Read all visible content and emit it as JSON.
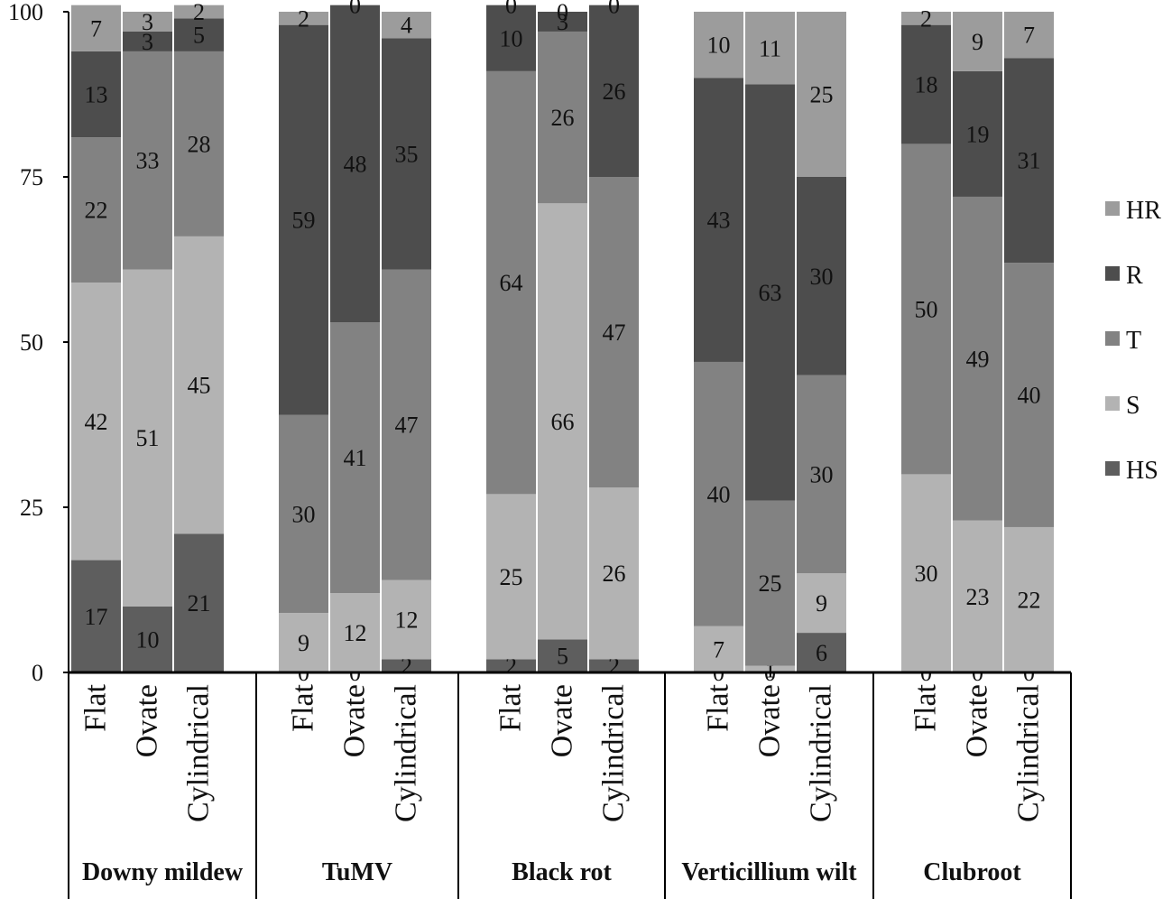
{
  "chart_data": {
    "type": "bar",
    "stacked": true,
    "title": "",
    "xlabel": "",
    "ylabel": "",
    "ylim": [
      0,
      100
    ],
    "yticks": [
      0,
      25,
      50,
      75,
      100
    ],
    "grid": false,
    "legend_position": "right",
    "segment_order": [
      "HS",
      "S",
      "T",
      "R",
      "HR"
    ],
    "legend_order": [
      "HR",
      "R",
      "T",
      "S",
      "HS"
    ],
    "colors": {
      "HS": "#5e5e5e",
      "S": "#b3b3b3",
      "T": "#828282",
      "R": "#4d4d4d",
      "HR": "#9c9c9c"
    },
    "groups": [
      {
        "name": "Downy mildew",
        "bars": [
          {
            "category": "Flat",
            "values": {
              "HS": 17,
              "S": 42,
              "T": 22,
              "R": 13,
              "HR": 7
            }
          },
          {
            "category": "Ovate",
            "values": {
              "HS": 10,
              "S": 51,
              "T": 33,
              "R": 3,
              "HR": 3
            }
          },
          {
            "category": "Cylindrical",
            "values": {
              "HS": 21,
              "S": 45,
              "T": 28,
              "R": 5,
              "HR": 2
            }
          }
        ]
      },
      {
        "name": "TuMV",
        "bars": [
          {
            "category": "Flat",
            "values": {
              "HS": 0,
              "S": 9,
              "T": 30,
              "R": 59,
              "HR": 2
            }
          },
          {
            "category": "Ovate",
            "values": {
              "HS": 0,
              "S": 12,
              "T": 41,
              "R": 48,
              "HR": 0
            }
          },
          {
            "category": "Cylindrical",
            "values": {
              "HS": 2,
              "S": 12,
              "T": 47,
              "R": 35,
              "HR": 4
            }
          }
        ]
      },
      {
        "name": "Black rot",
        "bars": [
          {
            "category": "Flat",
            "values": {
              "HS": 2,
              "S": 25,
              "T": 64,
              "R": 10,
              "HR": 0
            }
          },
          {
            "category": "Ovate",
            "values": {
              "HS": 5,
              "S": 66,
              "T": 26,
              "R": 3,
              "HR": 0
            }
          },
          {
            "category": "Cylindrical",
            "values": {
              "HS": 2,
              "S": 26,
              "T": 47,
              "R": 26,
              "HR": 0
            }
          }
        ]
      },
      {
        "name": "Verticillium wilt",
        "bars": [
          {
            "category": "Flat",
            "values": {
              "HS": 0,
              "S": 7,
              "T": 40,
              "R": 43,
              "HR": 10
            }
          },
          {
            "category": "Ovate",
            "values": {
              "HS": 0,
              "S": 1,
              "T": 25,
              "R": 63,
              "HR": 11
            }
          },
          {
            "category": "Cylindrical",
            "values": {
              "HS": 6,
              "S": 9,
              "T": 30,
              "R": 30,
              "HR": 25
            }
          }
        ]
      },
      {
        "name": "Clubroot",
        "bars": [
          {
            "category": "Flat",
            "values": {
              "HS": 0,
              "S": 30,
              "T": 50,
              "R": 18,
              "HR": 2
            }
          },
          {
            "category": "Ovate",
            "values": {
              "HS": 0,
              "S": 23,
              "T": 49,
              "R": 19,
              "HR": 9
            }
          },
          {
            "category": "Cylindrical",
            "values": {
              "HS": 0,
              "S": 22,
              "T": 40,
              "R": 31,
              "HR": 7
            }
          }
        ]
      }
    ]
  }
}
